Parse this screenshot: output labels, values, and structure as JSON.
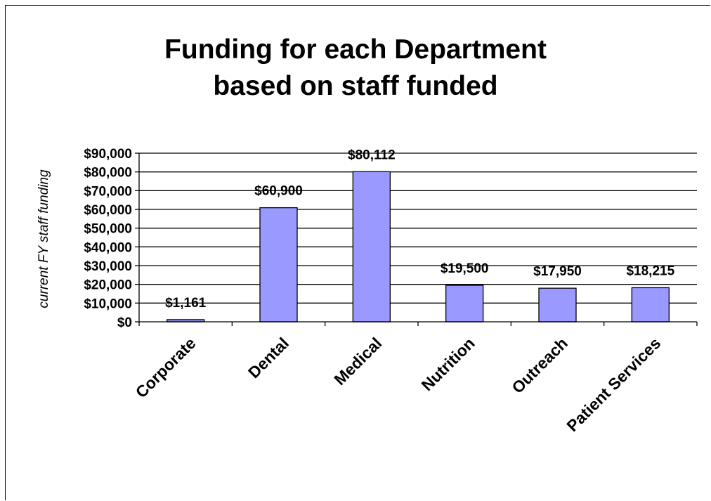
{
  "chart_data": {
    "type": "bar",
    "title": "Funding for each Department\nbased on staff funded",
    "ylabel": "current FY staff funding",
    "xlabel": "",
    "categories": [
      "Corporate",
      "Dental",
      "Medical",
      "Nutrition",
      "Outreach",
      "Patient Services"
    ],
    "values": [
      1161,
      60900,
      80112,
      19500,
      17950,
      18215
    ],
    "data_labels": [
      "$1,161",
      "$60,900",
      "$80,112",
      "$19,500",
      "$17,950",
      "$18,215"
    ],
    "ylim": [
      0,
      90000
    ],
    "y_ticks": [
      0,
      10000,
      20000,
      30000,
      40000,
      50000,
      60000,
      70000,
      80000,
      90000
    ],
    "y_tick_labels": [
      "$0",
      "$10,000",
      "$20,000",
      "$30,000",
      "$40,000",
      "$50,000",
      "$60,000",
      "$70,000",
      "$80,000",
      "$90,000"
    ],
    "grid": true,
    "legend": "none",
    "bar_color": "#9999ff"
  }
}
